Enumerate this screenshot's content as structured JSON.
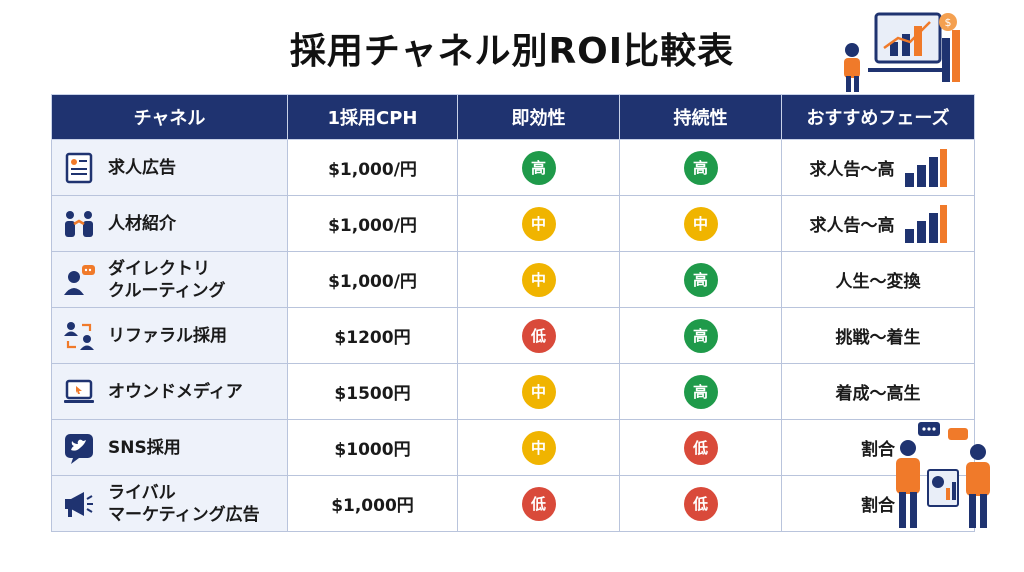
{
  "title": "採用チャネル別ROI比較表",
  "headers": [
    "チャネル",
    "1採用CPH",
    "即効性",
    "持続性",
    "おすすめフェーズ"
  ],
  "colors": {
    "header_bg": "#1f3370",
    "high": "#1f9a4a",
    "mid": "#f0b400",
    "low": "#d94a3a"
  },
  "rows": [
    {
      "icon": "document-icon",
      "channel": "求人広告",
      "cph": "$1,000/円",
      "speed": "高",
      "speed_level": "high",
      "sustain": "高",
      "sustain_level": "high",
      "phase": "求人告〜高",
      "phase_chart": true
    },
    {
      "icon": "handshake-icon",
      "channel": "人材紹介",
      "cph": "$1,000/円",
      "speed": "中",
      "speed_level": "mid",
      "sustain": "中",
      "sustain_level": "mid",
      "phase": "求人告〜高",
      "phase_chart": true
    },
    {
      "icon": "chat-user-icon",
      "channel": "ダイレクトリ\nクルーティング",
      "cph": "$1,000/円",
      "speed": "中",
      "speed_level": "mid",
      "sustain": "高",
      "sustain_level": "high",
      "phase": "人生〜変換",
      "phase_chart": false
    },
    {
      "icon": "referral-icon",
      "channel": "リファラル採用",
      "cph": "$1200円",
      "speed": "低",
      "speed_level": "low",
      "sustain": "高",
      "sustain_level": "high",
      "phase": "挑戦〜着生",
      "phase_chart": false
    },
    {
      "icon": "laptop-icon",
      "channel": "オウンドメディア",
      "cph": "$1500円",
      "speed": "中",
      "speed_level": "mid",
      "sustain": "高",
      "sustain_level": "high",
      "phase": "着成〜高生",
      "phase_chart": false
    },
    {
      "icon": "bird-icon",
      "channel": "SNS採用",
      "cph": "$1000円",
      "speed": "中",
      "speed_level": "mid",
      "sustain": "低",
      "sustain_level": "low",
      "phase": "割合",
      "phase_chart": false
    },
    {
      "icon": "megaphone-icon",
      "channel": "ライバル\nマーケティング広告",
      "cph": "$1,000円",
      "speed": "低",
      "speed_level": "low",
      "sustain": "低",
      "sustain_level": "low",
      "phase": "割合",
      "phase_chart": false
    }
  ]
}
